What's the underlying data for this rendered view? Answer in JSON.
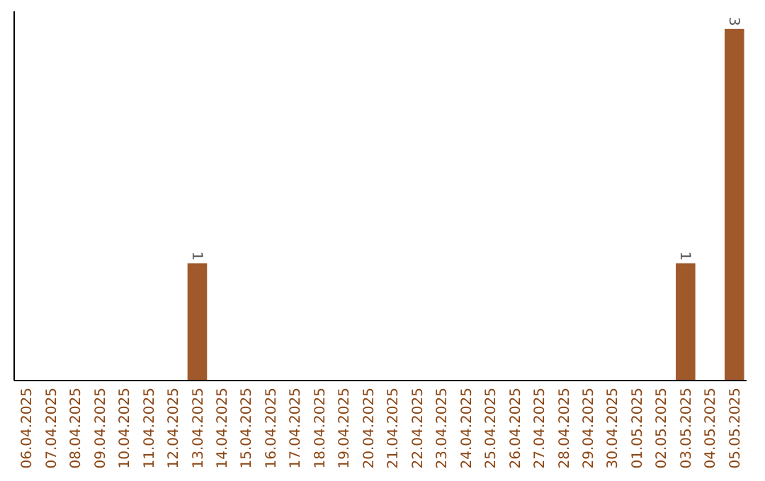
{
  "chart_data": {
    "type": "bar",
    "categories": [
      "06.04.2025",
      "07.04.2025",
      "08.04.2025",
      "09.04.2025",
      "10.04.2025",
      "11.04.2025",
      "12.04.2025",
      "13.04.2025",
      "14.04.2025",
      "15.04.2025",
      "16.04.2025",
      "17.04.2025",
      "18.04.2025",
      "19.04.2025",
      "20.04.2025",
      "21.04.2025",
      "22.04.2025",
      "23.04.2025",
      "24.04.2025",
      "25.04.2025",
      "26.04.2025",
      "27.04.2025",
      "28.04.2025",
      "29.04.2025",
      "30.04.2025",
      "01.05.2025",
      "02.05.2025",
      "03.05.2025",
      "04.05.2025",
      "05.05.2025"
    ],
    "values": [
      0,
      0,
      0,
      0,
      0,
      0,
      0,
      1,
      0,
      0,
      0,
      0,
      0,
      0,
      0,
      0,
      0,
      0,
      0,
      0,
      0,
      0,
      0,
      0,
      0,
      0,
      0,
      1,
      0,
      3
    ],
    "value_labels": [
      null,
      null,
      null,
      null,
      null,
      null,
      null,
      "1",
      null,
      null,
      null,
      null,
      null,
      null,
      null,
      null,
      null,
      null,
      null,
      null,
      null,
      null,
      null,
      null,
      null,
      null,
      null,
      "1",
      null,
      "3"
    ],
    "color": "#a0592b",
    "tick_labels": "x"
  }
}
